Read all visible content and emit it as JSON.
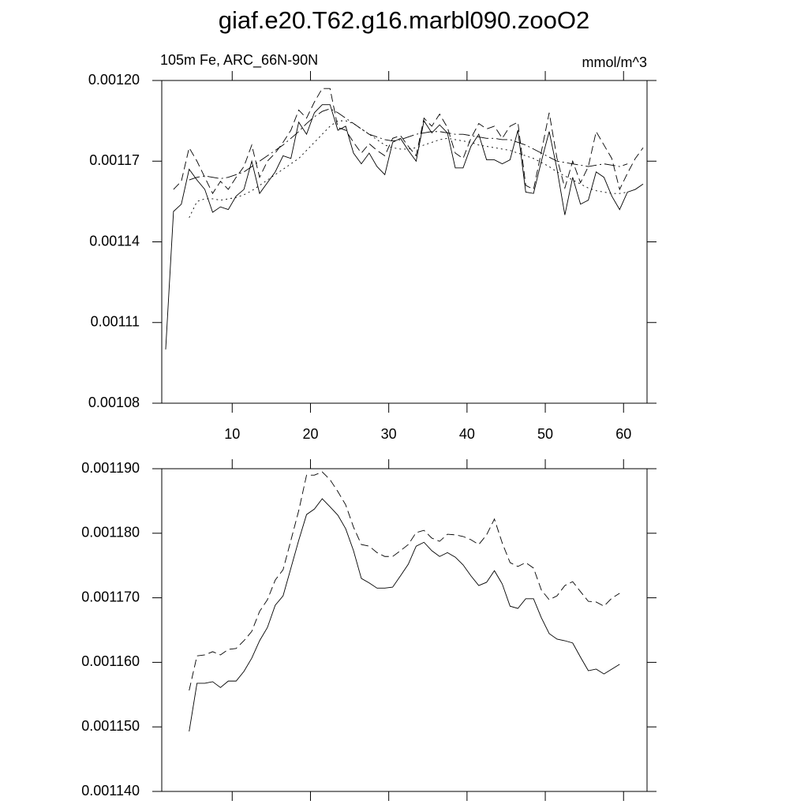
{
  "chart_data": [
    {
      "type": "line",
      "title": "giaf.e20.T62.g16.marbl090.zooO2",
      "subtitle": "105m Fe, ARC_66N-90N",
      "units": "mmol/m^3",
      "xlim": [
        1,
        63
      ],
      "xticks": [
        10,
        20,
        30,
        40,
        50,
        60
      ],
      "xtick_labels": true,
      "ylim": [
        0.00108,
        0.0012
      ],
      "yticks": [
        {
          "value": 0.00108,
          "label": "0.00108"
        },
        0.00111,
        0.00114,
        0.00117,
        {
          "value": 0.0012,
          "label": "0.00120"
        }
      ],
      "x": [
        1.5,
        2.5,
        3.5,
        4.5,
        5.5,
        6.5,
        7.5,
        8.5,
        9.5,
        10.5,
        11.5,
        12.5,
        13.5,
        14.5,
        15.5,
        16.5,
        17.5,
        18.5,
        19.5,
        20.5,
        21.5,
        22.5,
        23.5,
        24.5,
        25.5,
        26.5,
        27.5,
        28.5,
        29.5,
        30.5,
        31.5,
        32.5,
        33.5,
        34.5,
        35.5,
        36.5,
        37.5,
        38.5,
        39.5,
        40.5,
        41.5,
        42.5,
        43.5,
        44.5,
        45.5,
        46.5,
        47.5,
        48.5,
        49.5,
        50.5,
        51.5,
        52.5,
        53.5,
        54.5,
        55.5,
        56.5,
        57.5,
        58.5,
        59.5,
        60.5,
        61.5,
        62.5
      ],
      "series": [
        {
          "color": "#000000",
          "dash": "solid",
          "values": [
            0.0011,
            0.0011513,
            0.001154,
            0.001167,
            0.001163,
            0.0011595,
            0.001151,
            0.001153,
            0.001152,
            0.001157,
            0.0011595,
            0.00117,
            0.001158,
            0.001162,
            0.001166,
            0.001172,
            0.001171,
            0.0011845,
            0.00118,
            0.001188,
            0.001191,
            0.001191,
            0.0011815,
            0.001183,
            0.001173,
            0.001169,
            0.001173,
            0.001168,
            0.001165,
            0.001177,
            0.0011785,
            0.001174,
            0.00117,
            0.001185,
            0.0011805,
            0.0011835,
            0.0011805,
            0.0011675,
            0.0011675,
            0.0011755,
            0.00118,
            0.0011705,
            0.0011705,
            0.001169,
            0.0011705,
            0.0011815,
            0.0011585,
            0.001158,
            0.00117,
            0.001181,
            0.001167,
            0.00115,
            0.001164,
            0.001154,
            0.0011555,
            0.001166,
            0.001164,
            0.001157,
            0.001152,
            0.0011585,
            0.0011595,
            0.0011615
          ]
        },
        {
          "color": "#000000",
          "dash": "dashed",
          "values": [
            null,
            0.0011595,
            0.0011625,
            0.001175,
            0.00117,
            0.001164,
            0.001158,
            0.0011625,
            0.0011595,
            0.001164,
            0.001168,
            0.001176,
            0.001164,
            0.00117,
            0.001173,
            0.001177,
            0.0011815,
            0.001189,
            0.001186,
            0.001192,
            0.001197,
            0.001197,
            0.0011825,
            0.0011815,
            0.001177,
            0.001173,
            0.0011765,
            0.001174,
            0.001172,
            0.0011785,
            0.0011795,
            0.0011755,
            0.001172,
            0.001186,
            0.001183,
            0.0011875,
            0.0011825,
            0.001173,
            0.001171,
            0.0011785,
            0.001184,
            0.001182,
            0.001183,
            0.0011785,
            0.001183,
            0.0011845,
            0.001161,
            0.0011595,
            0.0011735,
            0.001188,
            0.001171,
            0.00116,
            0.00117,
            0.001162,
            0.001168,
            0.001181,
            0.001176,
            0.001171,
            0.0011595,
            0.0011655,
            0.001171,
            0.001175
          ]
        },
        {
          "color": "#000000",
          "dash": "dashdot",
          "values": [
            null,
            null,
            null,
            0.001163,
            0.001164,
            0.0011645,
            0.001164,
            0.0011635,
            0.001164,
            0.001165,
            0.001166,
            0.001168,
            0.00117,
            0.001172,
            0.001174,
            0.001176,
            0.0011785,
            0.001181,
            0.001184,
            0.0011865,
            0.0011885,
            0.0011895,
            0.001188,
            0.001186,
            0.001184,
            0.001182,
            0.00118,
            0.001179,
            0.001178,
            0.0011775,
            0.001178,
            0.001179,
            0.00118,
            0.0011805,
            0.001181,
            0.001181,
            0.0011805,
            0.00118,
            0.00118,
            0.0011795,
            0.001179,
            0.0011785,
            0.0011785,
            0.001178,
            0.001178,
            0.001177,
            0.001176,
            0.0011745,
            0.001173,
            0.0011715,
            0.00117,
            0.0011695,
            0.001169,
            0.0011685,
            0.001168,
            0.0011685,
            0.001169,
            0.0011685,
            0.001168,
            0.001169,
            null,
            null
          ]
        },
        {
          "color": "#000000",
          "dash": "dotted",
          "values": [
            null,
            null,
            null,
            0.001149,
            0.001155,
            0.001156,
            0.001156,
            0.0011555,
            0.001156,
            0.0011565,
            0.0011575,
            0.001159,
            0.001161,
            0.001163,
            0.001165,
            0.001167,
            0.001169,
            0.001171,
            0.001174,
            0.001177,
            0.00118,
            0.001183,
            0.001185,
            0.001185,
            0.001184,
            0.001182,
            0.00118,
            0.001178,
            0.001176,
            0.001175,
            0.0011745,
            0.0011745,
            0.001175,
            0.001176,
            0.001177,
            0.001178,
            0.0011785,
            0.001178,
            0.0011775,
            0.001177,
            0.001176,
            0.0011755,
            0.001175,
            0.0011745,
            0.001174,
            0.001173,
            0.001172,
            0.001171,
            0.0011695,
            0.001168,
            0.001166,
            0.0011645,
            0.001163,
            0.0011615,
            0.00116,
            0.001159,
            0.0011585,
            0.001158,
            0.001158,
            0.0011585,
            null,
            null
          ]
        }
      ]
    },
    {
      "type": "line",
      "xlim": [
        1,
        63
      ],
      "xticks": [
        10,
        20,
        30,
        40,
        50,
        60
      ],
      "xtick_labels": false,
      "ylim": [
        0.00114,
        0.00119
      ],
      "yticks": [
        {
          "value": 0.00114,
          "label": "0.001140"
        },
        {
          "value": 0.00115,
          "label": "0.001150"
        },
        {
          "value": 0.00116,
          "label": "0.001160"
        },
        {
          "value": 0.00117,
          "label": "0.001170"
        },
        {
          "value": 0.00118,
          "label": "0.001180"
        },
        {
          "value": 0.00119,
          "label": "0.001190"
        }
      ],
      "x": [
        4.5,
        5.5,
        6.5,
        7.5,
        8.5,
        9.5,
        10.5,
        11.5,
        12.5,
        13.5,
        14.5,
        15.5,
        16.5,
        17.5,
        18.5,
        19.5,
        20.5,
        21.5,
        22.5,
        23.5,
        24.5,
        25.5,
        26.5,
        27.5,
        28.5,
        29.5,
        30.5,
        31.5,
        32.5,
        33.5,
        34.5,
        35.5,
        36.5,
        37.5,
        38.5,
        39.5,
        40.5,
        41.5,
        42.5,
        43.5,
        44.5,
        45.5,
        46.5,
        47.5,
        48.5,
        49.5,
        50.5,
        51.5,
        52.5,
        53.5,
        54.5,
        55.5,
        56.5,
        57.5,
        58.5,
        59.5
      ],
      "series": [
        {
          "color": "#000000",
          "dash": "solid",
          "values": [
            0.0011493,
            0.00115675,
            0.00115675,
            0.001157,
            0.0011561,
            0.0011571,
            0.0011571,
            0.0011586,
            0.00116065,
            0.00116335,
            0.0011654,
            0.00116885,
            0.0011703,
            0.0011746,
            0.0011789,
            0.0011829,
            0.00118375,
            0.00118535,
            0.0011841,
            0.0011828,
            0.0011807,
            0.0011773,
            0.001173,
            0.0011723,
            0.0011715,
            0.0011715,
            0.00117165,
            0.0011734,
            0.0011752,
            0.001178,
            0.0011786,
            0.0011773,
            0.0011764,
            0.001177,
            0.0011763,
            0.0011751,
            0.0011734,
            0.0011719,
            0.0011724,
            0.0011742,
            0.00117215,
            0.0011687,
            0.00116835,
            0.00116985,
            0.00116985,
            0.0011669,
            0.00116445,
            0.0011636,
            0.00116335,
            0.001163,
            0.0011608,
            0.0011587,
            0.00115895,
            0.0011582,
            0.00115895,
            0.0011597
          ]
        },
        {
          "color": "#000000",
          "dash": "dashed",
          "values": [
            0.00115565,
            0.001161,
            0.00116115,
            0.00116165,
            0.00116115,
            0.001162,
            0.00116215,
            0.00116335,
            0.0011648,
            0.0011679,
            0.0011697,
            0.00117275,
            0.00117435,
            0.0011789,
            0.0011835,
            0.001189,
            0.001189,
            0.0011895,
            0.0011883,
            0.00118645,
            0.0011844,
            0.00118095,
            0.00117825,
            0.001178,
            0.001177,
            0.0011764,
            0.0011764,
            0.0011773,
            0.00117825,
            0.0011801,
            0.00118045,
            0.00117925,
            0.00117875,
            0.00117985,
            0.00117975,
            0.0011795,
            0.001179,
            0.00117825,
            0.00117975,
            0.0011822,
            0.0011785,
            0.00117545,
            0.00117485,
            0.00117545,
            0.0011746,
            0.0011712,
            0.0011697,
            0.0011703,
            0.0011719,
            0.0011725,
            0.00117095,
            0.00116945,
            0.00116935,
            0.0011687,
            0.00116995,
            0.0011707
          ]
        }
      ]
    }
  ]
}
